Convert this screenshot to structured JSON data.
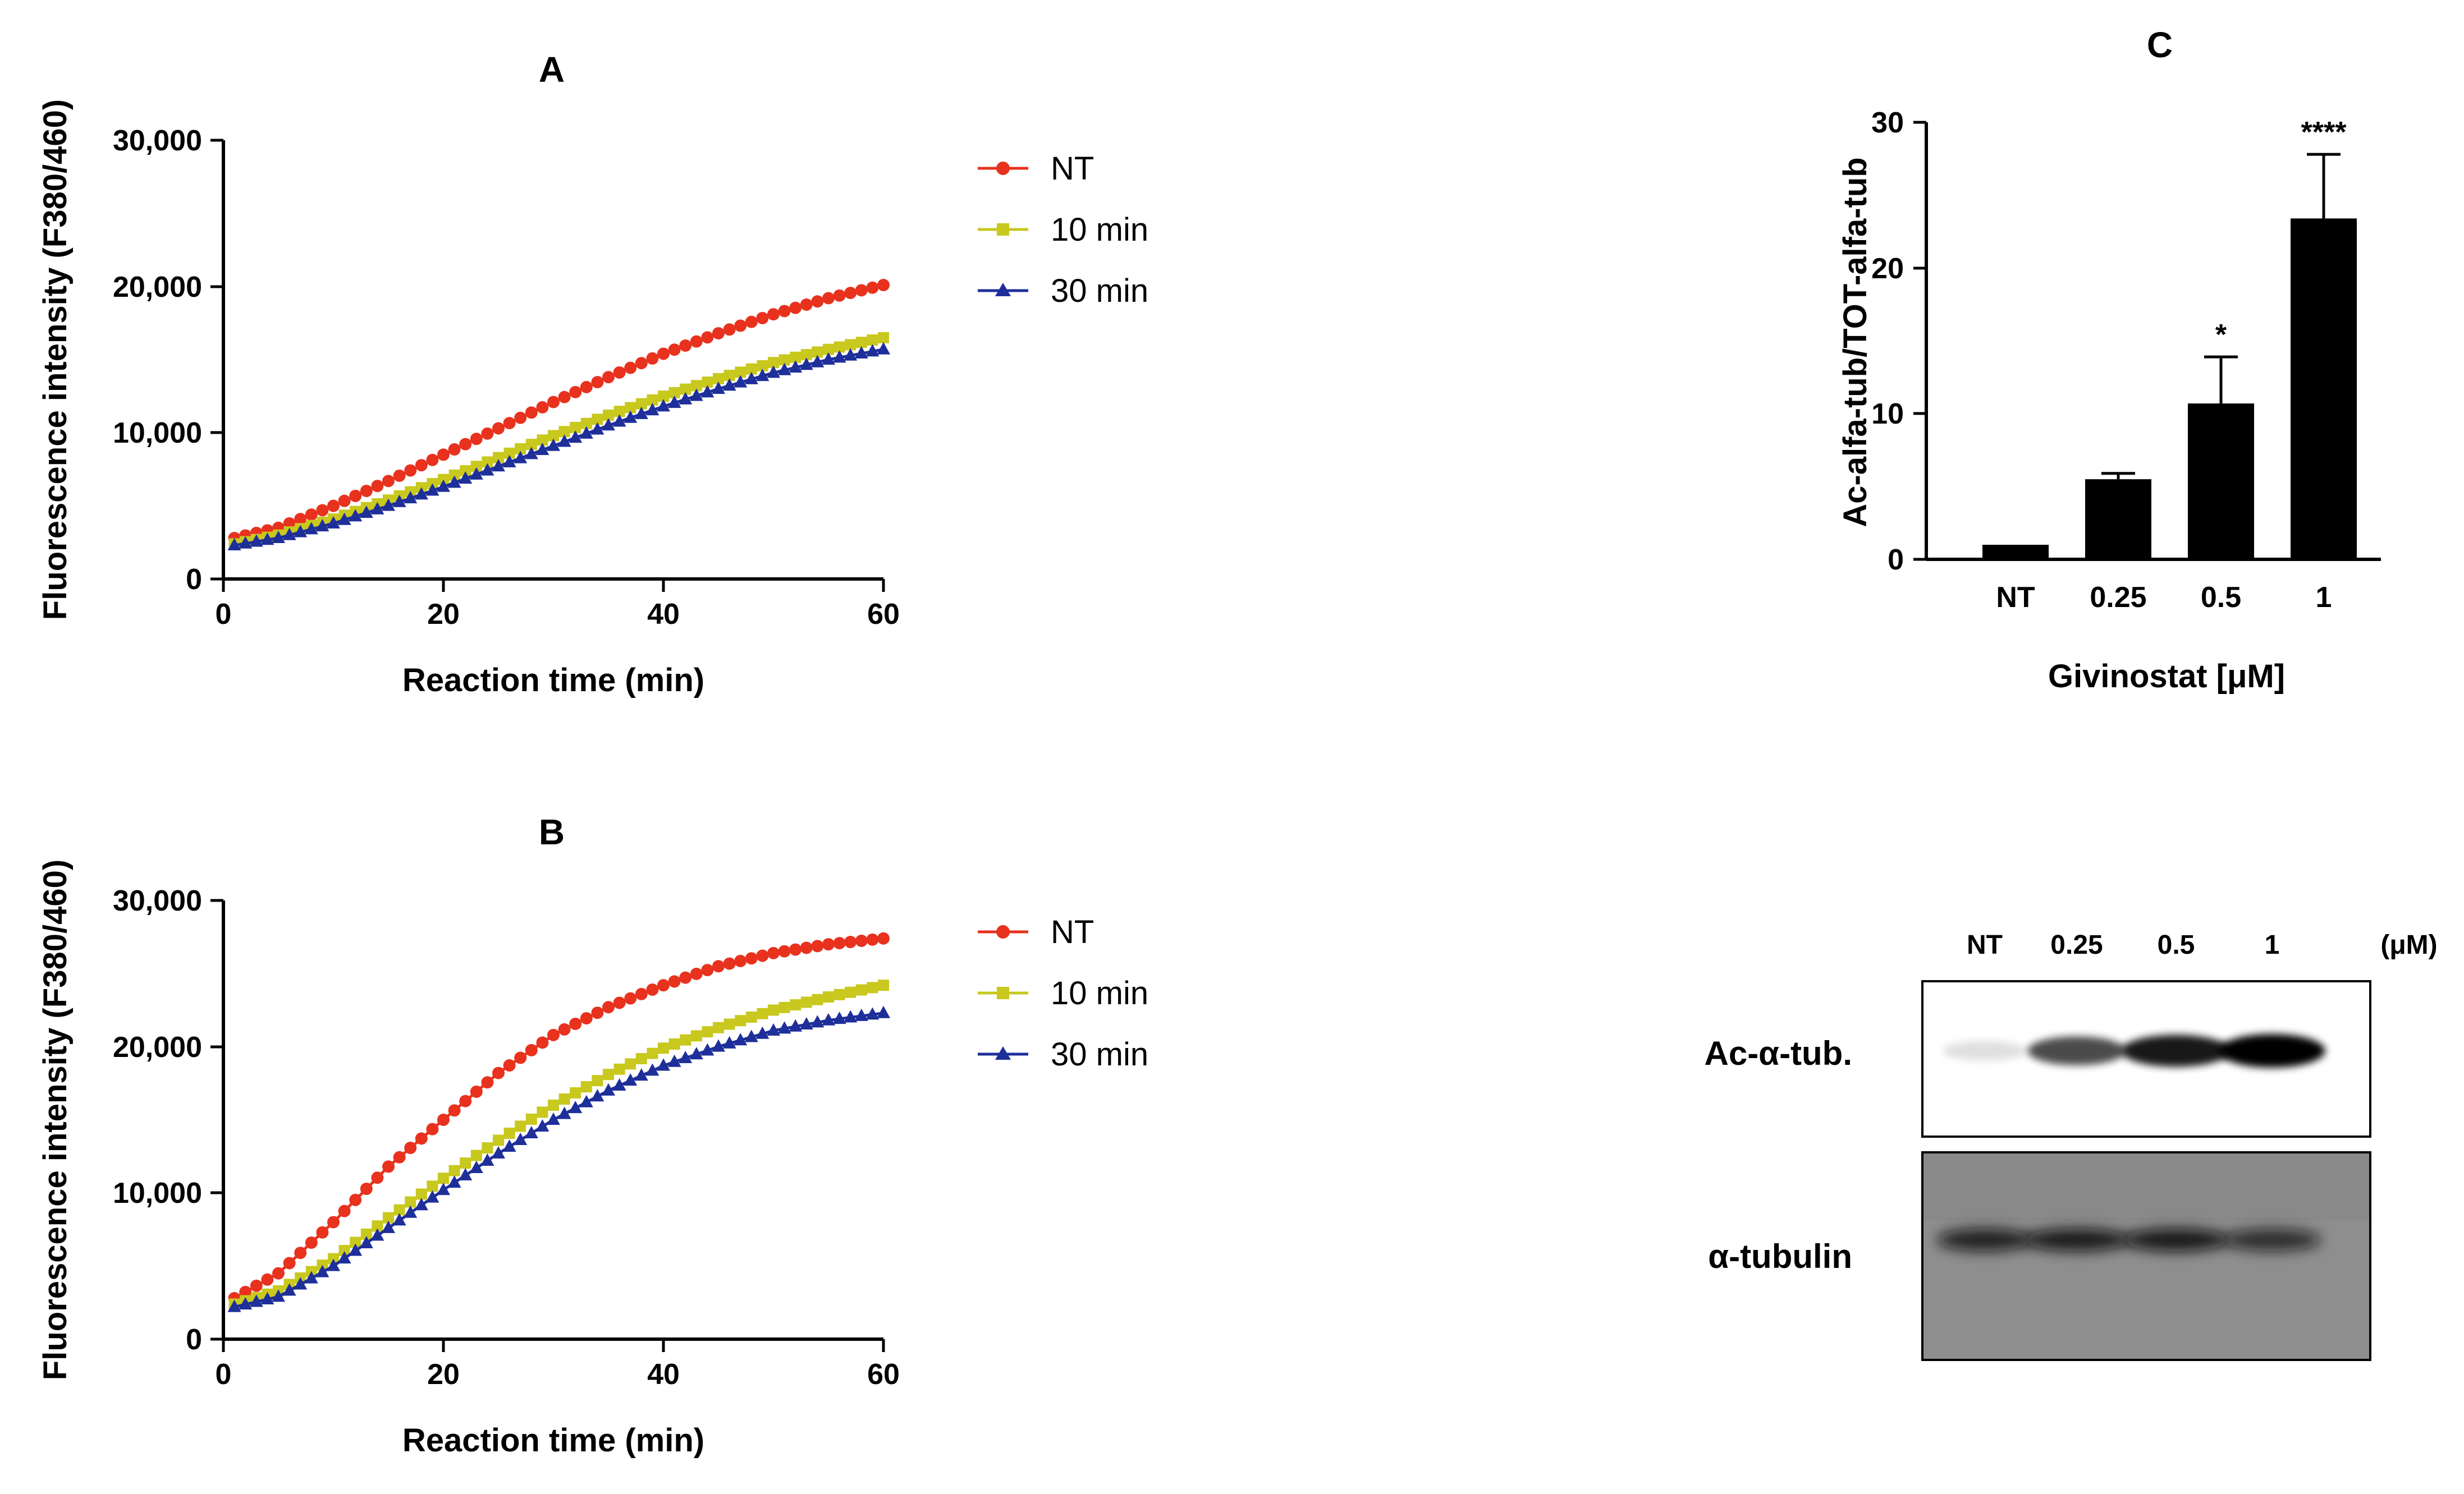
{
  "chart_data": [
    {
      "panel": "A",
      "type": "line",
      "title": "A",
      "xlabel": "Reaction time (min)",
      "ylabel": "Fluorescence intensity (F380/460)",
      "xlim": [
        0,
        60
      ],
      "ylim": [
        0,
        30000
      ],
      "xticks": [
        0,
        20,
        40,
        60
      ],
      "yticks": [
        0,
        10000,
        20000,
        30000
      ],
      "ytick_labels": [
        "0",
        "10,000",
        "20,000",
        "30,000"
      ],
      "xtick_labels": [
        "0",
        "20",
        "40",
        "60"
      ],
      "legend_position": "right",
      "x": [
        1,
        5,
        10,
        15,
        20,
        25,
        30,
        35,
        40,
        45,
        50,
        55,
        60
      ],
      "series": [
        {
          "name": "NT",
          "color": "#e8321e",
          "marker": "circle",
          "values": [
            2800,
            3500,
            5000,
            6700,
            8500,
            10300,
            12100,
            13800,
            15400,
            16800,
            18100,
            19200,
            20100
          ]
        },
        {
          "name": "10 min",
          "color": "#c8c81e",
          "marker": "square",
          "values": [
            2400,
            3000,
            4100,
            5400,
            6800,
            8300,
            9800,
            11200,
            12500,
            13700,
            14800,
            15700,
            16500
          ]
        },
        {
          "name": "30 min",
          "color": "#1e2f9a",
          "marker": "triangle",
          "values": [
            2300,
            2800,
            3800,
            5000,
            6300,
            7700,
            9100,
            10500,
            11800,
            13000,
            14100,
            15000,
            15700
          ]
        }
      ]
    },
    {
      "panel": "B",
      "type": "line",
      "title": "B",
      "xlabel": "Reaction time (min)",
      "ylabel": "Fluorescence intensity (F380/460)",
      "xlim": [
        0,
        60
      ],
      "ylim": [
        0,
        30000
      ],
      "xticks": [
        0,
        20,
        40,
        60
      ],
      "yticks": [
        0,
        10000,
        20000,
        30000
      ],
      "ytick_labels": [
        "0",
        "10,000",
        "20,000",
        "30,000"
      ],
      "xtick_labels": [
        "0",
        "20",
        "40",
        "60"
      ],
      "legend_position": "right",
      "x": [
        1,
        5,
        10,
        15,
        20,
        25,
        30,
        35,
        40,
        45,
        50,
        55,
        60
      ],
      "series": [
        {
          "name": "NT",
          "color": "#e8321e",
          "marker": "circle",
          "values": [
            2800,
            4500,
            8000,
            11800,
            15000,
            18200,
            20800,
            22700,
            24200,
            25500,
            26400,
            27000,
            27400
          ]
        },
        {
          "name": "10 min",
          "color": "#c8c81e",
          "marker": "square",
          "values": [
            2400,
            3300,
            5500,
            8300,
            11000,
            13600,
            16000,
            18100,
            19900,
            21300,
            22500,
            23400,
            24200
          ]
        },
        {
          "name": "30 min",
          "color": "#1e2f9a",
          "marker": "triangle",
          "values": [
            2200,
            2900,
            5000,
            7600,
            10200,
            12700,
            15000,
            17000,
            18700,
            20000,
            21100,
            21800,
            22300
          ]
        }
      ]
    },
    {
      "panel": "C",
      "type": "bar",
      "title": "C",
      "xlabel": "Givinostat [μM]",
      "ylabel": "Ac-alfa-tub/TOT-alfa-tub",
      "categories": [
        "NT",
        "0.25",
        "0.5",
        "1"
      ],
      "values": [
        1.0,
        5.5,
        10.7,
        23.4
      ],
      "errors": [
        0,
        0.4,
        3.2,
        4.4
      ],
      "significance": [
        "",
        "",
        "*",
        "****"
      ],
      "ylim": [
        0,
        30
      ],
      "yticks": [
        0,
        10,
        20,
        30
      ],
      "ytick_labels": [
        "0",
        "10",
        "20",
        "30"
      ],
      "bar_color": "#000000"
    }
  ],
  "blot": {
    "lane_labels": [
      "NT",
      "0.25",
      "0.5",
      "1"
    ],
    "unit_label": "(μM)",
    "row_labels": [
      "Ac-α-tub.",
      "α-tubulin"
    ],
    "ac_tub_band_intensity": [
      0.12,
      0.7,
      0.9,
      1.0
    ],
    "tub_band_intensity": [
      0.85,
      0.9,
      0.92,
      0.75
    ]
  }
}
